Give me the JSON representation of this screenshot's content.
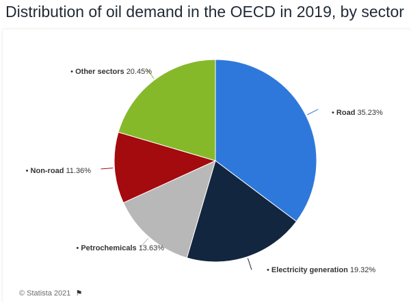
{
  "title": "Distribution of oil demand in the OECD in 2019, by sector",
  "credit": "© Statista 2021",
  "icons": {
    "credit_flag": "flag-icon"
  },
  "chart_data": {
    "type": "pie",
    "title": "Distribution of oil demand in the OECD in 2019, by sector",
    "slices": [
      {
        "label": "Road",
        "value": 35.23,
        "value_label": "35.23%",
        "color": "#2f78db"
      },
      {
        "label": "Electricity generation",
        "value": 19.32,
        "value_label": "19.32%",
        "color": "#13263f"
      },
      {
        "label": "Petrochemicals",
        "value": 13.63,
        "value_label": "13.63%",
        "color": "#b8b8b8"
      },
      {
        "label": "Non-road",
        "value": 11.36,
        "value_label": "11.36%",
        "color": "#a30b0e"
      },
      {
        "label": "Other sectors",
        "value": 20.45,
        "value_label": "20.45%",
        "color": "#86b92a"
      }
    ]
  }
}
